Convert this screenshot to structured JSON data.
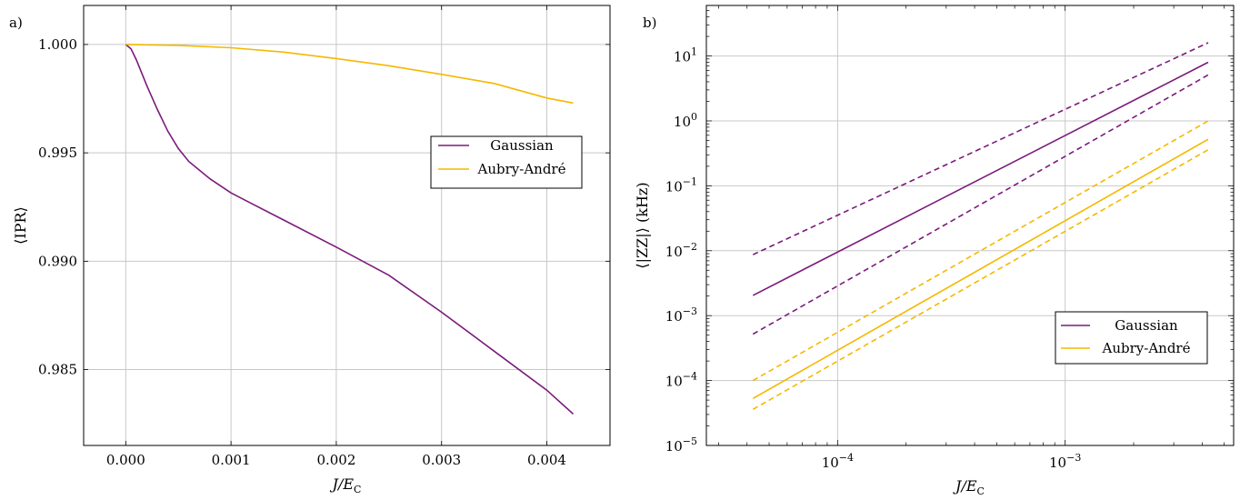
{
  "colors": {
    "gaussian": "#7a1a7a",
    "aubry": "#f5b800",
    "grid": "#c8c8c8",
    "axis": "#000000"
  },
  "chart_data": [
    {
      "panel": "a)",
      "type": "line",
      "xlabel": "J/E_C",
      "ylabel": "⟨IPR⟩",
      "xlim": [
        -0.0004,
        0.0046
      ],
      "ylim": [
        0.9815,
        1.0018
      ],
      "xticks": [
        0.0,
        0.001,
        0.002,
        0.003,
        0.004
      ],
      "xtick_labels": [
        "0.000",
        "0.001",
        "0.002",
        "0.003",
        "0.004"
      ],
      "yticks": [
        0.985,
        0.99,
        0.995,
        1.0
      ],
      "ytick_labels": [
        "0.985",
        "0.990",
        "0.995",
        "1.000"
      ],
      "grid": true,
      "legend": "center-right",
      "series": [
        {
          "name": "Gaussian",
          "color": "#7a1a7a",
          "x": [
            0.0,
            5e-05,
            0.0001,
            0.0002,
            0.0003,
            0.0004,
            0.0005,
            0.0006,
            0.0008,
            0.001,
            0.0012,
            0.0015,
            0.002,
            0.0025,
            0.003,
            0.0035,
            0.004,
            0.00425
          ],
          "y": [
            1.0,
            0.9998,
            0.9993,
            0.9981,
            0.997,
            0.996,
            0.9952,
            0.9946,
            0.9938,
            0.99315,
            0.99265,
            0.9919,
            0.99065,
            0.98935,
            0.98765,
            0.98585,
            0.98405,
            0.98295
          ]
        },
        {
          "name": "Aubry-André",
          "color": "#f5b800",
          "x": [
            0.0,
            0.0005,
            0.001,
            0.0015,
            0.002,
            0.0025,
            0.003,
            0.0035,
            0.004,
            0.00425
          ],
          "y": [
            1.0,
            0.99996,
            0.99985,
            0.99965,
            0.99935,
            0.99902,
            0.99862,
            0.9982,
            0.99753,
            0.9973
          ]
        }
      ]
    },
    {
      "panel": "b)",
      "type": "line",
      "xscale": "log",
      "yscale": "log",
      "xlabel": "J/E_C",
      "ylabel": "⟨|ZZ|⟩ (kHz)",
      "xlim": [
        2.65e-05,
        0.0055
      ],
      "ylim": [
        1e-05,
        60
      ],
      "xticks": [
        0.0001,
        0.001
      ],
      "xtick_labels": [
        "10^−4",
        "10^−3"
      ],
      "yticks": [
        1e-05,
        0.0001,
        0.001,
        0.01,
        0.1,
        1,
        10
      ],
      "ytick_labels": [
        "10^−5",
        "10^−4",
        "10^−3",
        "10^−2",
        "10^−1",
        "10^0",
        "10^1"
      ],
      "grid": true,
      "legend": "lower-right",
      "series": [
        {
          "name": "Gaussian",
          "color": "#7a1a7a",
          "style": "solid",
          "x": [
            4.25e-05,
            0.00425
          ],
          "y": [
            0.00205,
            8.0
          ]
        },
        {
          "color": "#7a1a7a",
          "style": "dashed",
          "x": [
            4.25e-05,
            0.00425
          ],
          "y": [
            0.0087,
            16.0
          ]
        },
        {
          "color": "#7a1a7a",
          "style": "dashed",
          "x": [
            4.25e-05,
            0.00425
          ],
          "y": [
            0.00052,
            5.1
          ]
        },
        {
          "name": "Aubry-André",
          "color": "#f5b800",
          "style": "solid",
          "x": [
            4.25e-05,
            0.00425
          ],
          "y": [
            5.3e-05,
            0.52
          ]
        },
        {
          "color": "#f5b800",
          "style": "dashed",
          "x": [
            4.25e-05,
            0.00425
          ],
          "y": [
            0.0001,
            1.0
          ]
        },
        {
          "color": "#f5b800",
          "style": "dashed",
          "x": [
            4.25e-05,
            0.00425
          ],
          "y": [
            3.6e-05,
            0.36
          ]
        }
      ]
    }
  ]
}
